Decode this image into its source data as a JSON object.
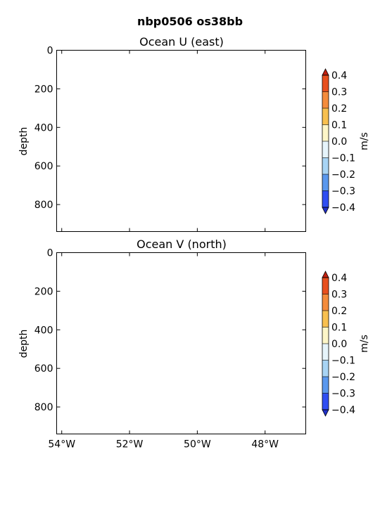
{
  "chart_data": [
    {
      "type": "heatmap",
      "title": "Ocean U (east)",
      "ylabel": "depth",
      "ylim": [
        940,
        0
      ],
      "yticks": [
        "0",
        "200",
        "400",
        "600",
        "800"
      ],
      "ytick_values": [
        0,
        200,
        400,
        600,
        800
      ],
      "xlim": [
        -54.15,
        -46.8
      ],
      "xtick_values": [
        -54,
        -52,
        -50,
        -48
      ],
      "xticks_labeled": false,
      "values": [],
      "colorbar": {
        "label": "m/s",
        "ticks": [
          "0.4",
          "0.3",
          "0.2",
          "0.1",
          "0.0",
          "−0.1",
          "−0.2",
          "−0.3",
          "−0.4"
        ],
        "levels": [
          0.4,
          0.3,
          0.2,
          0.1,
          0.0,
          -0.1,
          -0.2,
          -0.3,
          -0.4
        ],
        "colors": [
          "#e8501e",
          "#f48c3c",
          "#f8c050",
          "#fdf6c8",
          "#e6f4fb",
          "#a8d4f4",
          "#5a98ee",
          "#2f4ef2"
        ],
        "extend_colors": [
          "#c02010",
          "#2030c8"
        ]
      }
    },
    {
      "type": "heatmap",
      "title": "Ocean V (north)",
      "ylabel": "depth",
      "ylim": [
        940,
        0
      ],
      "yticks": [
        "0",
        "200",
        "400",
        "600",
        "800"
      ],
      "ytick_values": [
        0,
        200,
        400,
        600,
        800
      ],
      "xlim": [
        -54.15,
        -46.8
      ],
      "xtick_values": [
        -54,
        -52,
        -50,
        -48
      ],
      "xticks": [
        "54°W",
        "52°W",
        "50°W",
        "48°W"
      ],
      "xticks_labeled": true,
      "values": [],
      "colorbar": {
        "label": "m/s",
        "ticks": [
          "0.4",
          "0.3",
          "0.2",
          "0.1",
          "0.0",
          "−0.1",
          "−0.2",
          "−0.3",
          "−0.4"
        ],
        "levels": [
          0.4,
          0.3,
          0.2,
          0.1,
          0.0,
          -0.1,
          -0.2,
          -0.3,
          -0.4
        ],
        "colors": [
          "#e8501e",
          "#f48c3c",
          "#f8c050",
          "#fdf6c8",
          "#e6f4fb",
          "#a8d4f4",
          "#5a98ee",
          "#2f4ef2"
        ],
        "extend_colors": [
          "#c02010",
          "#2030c8"
        ]
      }
    }
  ],
  "figure": {
    "suptitle": "nbp0506 os38bb"
  }
}
